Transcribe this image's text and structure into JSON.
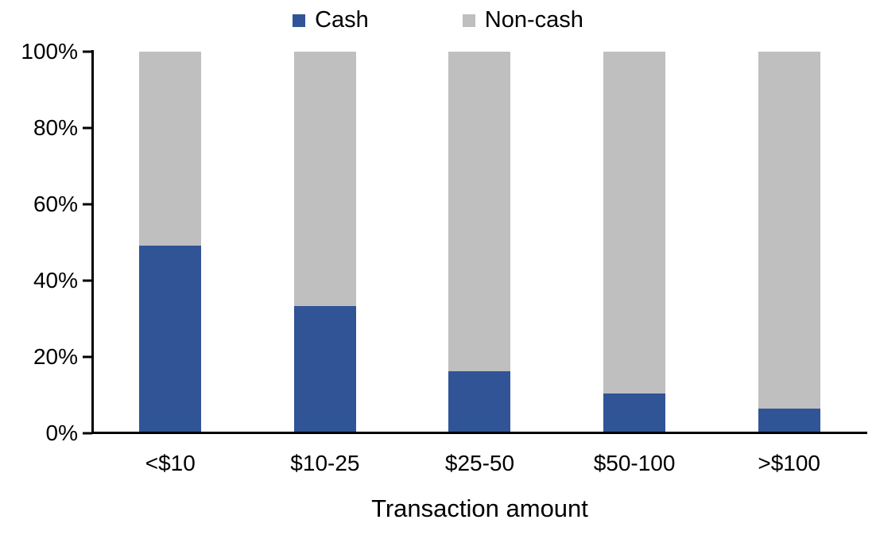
{
  "figure": {
    "background": "#FFFFFF",
    "axis_color": "#000000",
    "text_color": "#000000"
  },
  "chart_data": {
    "type": "bar",
    "stacked": true,
    "orientation": "vertical",
    "title": "",
    "xlabel": "Transaction amount",
    "ylabel": "",
    "categories": [
      "<$10",
      "$10-25",
      "$25-50",
      "$50-100",
      ">$100"
    ],
    "series": [
      {
        "name": "Cash",
        "color": "#305496",
        "values": [
          49,
          33,
          16,
          10,
          6
        ]
      },
      {
        "name": "Non-cash",
        "color": "#BFBFBF",
        "values": [
          51,
          67,
          84,
          90,
          94
        ]
      }
    ],
    "ylim": [
      0,
      100
    ],
    "ytick_values": [
      0,
      20,
      40,
      60,
      80,
      100
    ],
    "ytick_labels": [
      "0%",
      "20%",
      "40%",
      "60%",
      "80%",
      "100%"
    ],
    "grid": false,
    "legend_position": "top-center"
  }
}
